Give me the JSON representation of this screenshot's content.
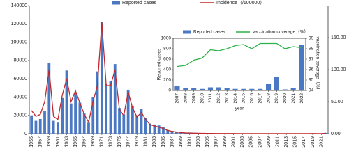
{
  "chart_data": [
    {
      "type": "combo",
      "x": [
        1955,
        1956,
        1957,
        1958,
        1959,
        1960,
        1961,
        1962,
        1963,
        1964,
        1965,
        1966,
        1967,
        1968,
        1969,
        1970,
        1971,
        1972,
        1973,
        1974,
        1975,
        1976,
        1977,
        1978,
        1979,
        1980,
        1981,
        1982,
        1983,
        1984,
        1985,
        1986,
        1987,
        1988,
        1989,
        1990,
        1991,
        1992,
        1993,
        1994,
        1995,
        1996,
        1997,
        1998,
        1999,
        2000,
        2001,
        2002,
        2003,
        2004,
        2005,
        2006,
        2007,
        2008,
        2009,
        2010,
        2011,
        2012,
        2013,
        2014,
        2015,
        2016,
        2017,
        2018,
        2019,
        2020,
        2021,
        2022
      ],
      "xlim": [
        1954.5,
        2022.5
      ],
      "xticks": [
        1955,
        1957,
        1959,
        1961,
        1963,
        1965,
        1967,
        1969,
        1971,
        1973,
        1975,
        1977,
        1979,
        1981,
        1983,
        1985,
        1987,
        1989,
        1991,
        1993,
        1995,
        1997,
        1999,
        2001,
        2003,
        2005,
        2007,
        2009,
        2011,
        2013,
        2015,
        2017,
        2019,
        2021
      ],
      "ylim": [
        0,
        140000
      ],
      "yticks": [
        0,
        20000,
        40000,
        60000,
        80000,
        100000,
        120000,
        140000
      ],
      "y2lim": [
        0,
        200
      ],
      "y2ticks": [
        {
          "value": 0,
          "label": "0.00"
        },
        {
          "value": 50,
          "label": "50.00"
        },
        {
          "value": 100,
          "label": "100.00"
        },
        {
          "value": 150,
          "label": "150.00"
        }
      ],
      "series": [
        {
          "name": "Reported cases",
          "type": "bar",
          "color": "#4a78c2",
          "values": [
            20000,
            14000,
            16000,
            25000,
            77000,
            14000,
            12000,
            39000,
            69000,
            33000,
            45000,
            34000,
            22000,
            12000,
            40000,
            68000,
            122000,
            55000,
            57000,
            76000,
            28000,
            21000,
            48000,
            30000,
            20000,
            27000,
            17000,
            11000,
            10000,
            9000,
            7000,
            4000,
            3000,
            2000,
            1500,
            1000,
            800,
            600,
            500,
            400,
            300,
            300,
            250,
            200,
            200,
            150,
            150,
            120,
            100,
            100,
            90,
            80,
            80,
            50,
            40,
            30,
            60,
            60,
            40,
            30,
            30,
            30,
            30,
            130,
            260,
            20,
            40,
            880
          ]
        },
        {
          "name": "Incidence（/100000）",
          "type": "line",
          "axis": "y2",
          "color": "#c0282d",
          "values": [
            36,
            27,
            30,
            50,
            100,
            27,
            22,
            60,
            86,
            50,
            67,
            48,
            30,
            18,
            50,
            75,
            174,
            75,
            75,
            100,
            38,
            28,
            65,
            40,
            26,
            33,
            22,
            14,
            12,
            10,
            8,
            5,
            3.5,
            2.5,
            1.8,
            1.2,
            1,
            0.8,
            0.6,
            0.5,
            0.4,
            0.4,
            0.3,
            0.3,
            0.2,
            0.2,
            0.2,
            0.1,
            0.1,
            0.1,
            0.1,
            0.1,
            0.1,
            0.1,
            0.1,
            0.1,
            0.1,
            0.1,
            0.1,
            0.1,
            0.1,
            0.1,
            0.1,
            0.1,
            0.2,
            0.1,
            0.1,
            0.6
          ]
        }
      ]
    },
    {
      "type": "combo",
      "xlabel": "year",
      "ylabel": "Reported cases",
      "y2label": "vaccination coverage（%）",
      "x": [
        2007,
        2008,
        2009,
        2010,
        2011,
        2012,
        2013,
        2014,
        2015,
        2016,
        2017,
        2018,
        2019,
        2020,
        2021,
        2022
      ],
      "xlim": [
        2006.5,
        2022.5
      ],
      "xticks": [
        2007,
        2008,
        2009,
        2010,
        2011,
        2012,
        2013,
        2014,
        2015,
        2016,
        2017,
        2018,
        2019,
        2020,
        2021,
        2022
      ],
      "ylim": [
        0,
        1000
      ],
      "yticks": [
        0,
        200,
        400,
        600,
        800,
        1000
      ],
      "y2lim": [
        94,
        99
      ],
      "y2ticks": [
        94,
        95,
        96,
        97,
        98,
        99
      ],
      "series": [
        {
          "name": "Reported cases",
          "type": "bar",
          "color": "#4a78c2",
          "values": [
            80,
            50,
            40,
            30,
            60,
            60,
            40,
            30,
            30,
            30,
            30,
            130,
            260,
            20,
            40,
            880
          ]
        },
        {
          "name": "vaccination coverage（%）",
          "type": "line",
          "axis": "y2",
          "color": "#2db24a",
          "values": [
            96.3,
            96.4,
            96.9,
            97.1,
            97.9,
            97.8,
            98.0,
            98.3,
            98.4,
            98.0,
            98.5,
            98.5,
            98.5,
            98.0,
            98.2,
            98.1
          ]
        }
      ]
    }
  ]
}
